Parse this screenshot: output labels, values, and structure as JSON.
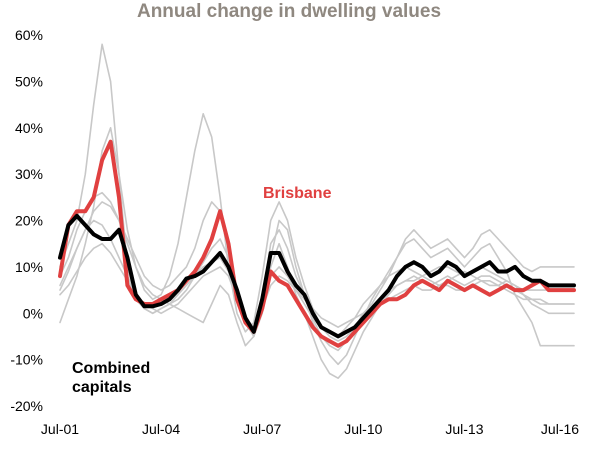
{
  "chart_data": {
    "type": "line",
    "title": "Annual change in dwelling values",
    "xlabel": "",
    "ylabel": "",
    "x": [
      2001.5,
      2001.75,
      2002.0,
      2002.25,
      2002.5,
      2002.75,
      2003.0,
      2003.25,
      2003.5,
      2003.75,
      2004.0,
      2004.25,
      2004.5,
      2004.75,
      2005.0,
      2005.25,
      2005.5,
      2005.75,
      2006.0,
      2006.25,
      2006.5,
      2006.75,
      2007.0,
      2007.25,
      2007.5,
      2007.75,
      2008.0,
      2008.25,
      2008.5,
      2008.75,
      2009.0,
      2009.25,
      2009.5,
      2009.75,
      2010.0,
      2010.25,
      2010.5,
      2010.75,
      2011.0,
      2011.25,
      2011.5,
      2011.75,
      2012.0,
      2012.25,
      2012.5,
      2012.75,
      2013.0,
      2013.25,
      2013.5,
      2013.75,
      2014.0,
      2014.25,
      2014.5,
      2014.75,
      2015.0,
      2015.25,
      2015.5,
      2015.75,
      2016.0,
      2016.25,
      2016.5,
      2016.75
    ],
    "x_ticks": [
      {
        "value": 2001.5,
        "label": "Jul-01"
      },
      {
        "value": 2004.5,
        "label": "Jul-04"
      },
      {
        "value": 2007.5,
        "label": "Jul-07"
      },
      {
        "value": 2010.5,
        "label": "Jul-10"
      },
      {
        "value": 2013.5,
        "label": "Jul-13"
      },
      {
        "value": 2016.5,
        "label": "Jul-16"
      }
    ],
    "xlim": [
      2001.5,
      2016.75
    ],
    "y_ticks": [
      -20,
      -10,
      0,
      10,
      20,
      30,
      40,
      50,
      60
    ],
    "y_tick_labels": [
      "-20%",
      "-10%",
      "0%",
      "10%",
      "20%",
      "30%",
      "40%",
      "50%",
      "60%"
    ],
    "ylim": [
      -20,
      60
    ],
    "grid": false,
    "legend": "none",
    "series": [
      {
        "name": "Combined capitals",
        "color": "#000000",
        "emphasis": true,
        "values": [
          12,
          19,
          21,
          19,
          17,
          16,
          16,
          18,
          12,
          4,
          1.5,
          1.5,
          2,
          3,
          5,
          7.5,
          8,
          9,
          11,
          13,
          10,
          5,
          -1,
          -4,
          3,
          13,
          13,
          9,
          6,
          4,
          0,
          -3,
          -4,
          -5,
          -4,
          -3,
          -1,
          1,
          3,
          5,
          8,
          10,
          11,
          10,
          8,
          9,
          11,
          10,
          8,
          9,
          10,
          11,
          9,
          9,
          10,
          8,
          7,
          7,
          6,
          6,
          6,
          6
        ]
      },
      {
        "name": "Brisbane",
        "color": "#e04040",
        "emphasis": true,
        "values": [
          8,
          19,
          22,
          22,
          25,
          33,
          37,
          25,
          6,
          3,
          2,
          2,
          3,
          4,
          5,
          7,
          9,
          12,
          16,
          22,
          15,
          3,
          -2,
          -4,
          1,
          9,
          7,
          6,
          3,
          0,
          -3,
          -5,
          -6,
          -7,
          -6,
          -4,
          -2,
          0,
          2,
          3,
          3,
          4,
          6,
          7,
          6,
          5,
          7,
          6,
          5,
          6,
          5,
          4,
          5,
          6,
          5,
          5,
          6,
          7,
          5,
          5,
          5,
          5
        ]
      },
      {
        "name": "",
        "color": "#c8c8c8",
        "emphasis": false,
        "values": [
          10,
          15,
          20,
          30,
          45,
          58,
          50,
          30,
          10,
          3,
          1,
          0,
          1,
          2,
          3,
          5,
          8,
          11,
          14,
          16,
          12,
          5,
          -1,
          -5,
          3,
          15,
          18,
          14,
          8,
          4,
          -2,
          -6,
          -9,
          -11,
          -9,
          -5,
          -1,
          3,
          6,
          9,
          12,
          15,
          16,
          14,
          12,
          13,
          14,
          12,
          10,
          12,
          14,
          15,
          12,
          9,
          4,
          1,
          -2,
          -7,
          -7,
          -7,
          -7,
          -7
        ]
      },
      {
        "name": "",
        "color": "#c8c8c8",
        "emphasis": false,
        "values": [
          5,
          9,
          14,
          18,
          22,
          24,
          23,
          20,
          15,
          10,
          5,
          3,
          4,
          8,
          15,
          25,
          35,
          43,
          38,
          25,
          10,
          0,
          -4,
          -2,
          8,
          20,
          24,
          20,
          12,
          6,
          1,
          -3,
          -4,
          -5,
          -3,
          -1,
          2,
          4,
          6,
          8,
          9,
          10,
          9,
          8,
          7,
          6,
          7,
          8,
          9,
          8,
          7,
          6,
          6,
          7,
          6,
          5,
          5,
          5,
          5,
          5,
          5,
          5
        ]
      },
      {
        "name": "",
        "color": "#c8c8c8",
        "emphasis": false,
        "values": [
          -2,
          3,
          8,
          15,
          23,
          35,
          40,
          30,
          18,
          10,
          6,
          4,
          3,
          2,
          1,
          0,
          -1,
          -2,
          2,
          6,
          4,
          -2,
          -7,
          -5,
          2,
          10,
          15,
          10,
          4,
          0,
          -5,
          -10,
          -13,
          -14,
          -12,
          -8,
          -4,
          -1,
          2,
          4,
          6,
          7,
          7,
          8,
          9,
          10,
          10,
          9,
          8,
          9,
          10,
          9,
          8,
          7,
          6,
          4,
          2,
          1,
          0,
          0,
          0,
          0
        ]
      },
      {
        "name": "",
        "color": "#c8c8c8",
        "emphasis": false,
        "values": [
          8,
          12,
          18,
          22,
          25,
          26,
          24,
          20,
          16,
          12,
          8,
          6,
          5,
          6,
          8,
          10,
          14,
          20,
          24,
          22,
          14,
          4,
          -2,
          -4,
          2,
          12,
          20,
          18,
          10,
          4,
          -1,
          -5,
          -7,
          -8,
          -6,
          -3,
          0,
          2,
          5,
          8,
          12,
          16,
          18,
          16,
          14,
          15,
          16,
          14,
          12,
          14,
          17,
          18,
          16,
          14,
          12,
          10,
          9,
          10,
          10,
          10,
          10,
          10
        ]
      },
      {
        "name": "",
        "color": "#c8c8c8",
        "emphasis": false,
        "values": [
          6,
          10,
          14,
          18,
          20,
          19,
          16,
          12,
          8,
          4,
          1,
          0,
          1,
          2,
          4,
          6,
          8,
          10,
          11,
          12,
          9,
          3,
          -2,
          -5,
          0,
          8,
          10,
          8,
          5,
          2,
          -1,
          -3,
          -5,
          -6,
          -5,
          -3,
          -1,
          1,
          3,
          5,
          6,
          7,
          8,
          7,
          6,
          7,
          8,
          7,
          6,
          7,
          8,
          8,
          7,
          6,
          5,
          4,
          3,
          3,
          2,
          2,
          2,
          2
        ]
      },
      {
        "name": "",
        "color": "#c8c8c8",
        "emphasis": false,
        "values": [
          4,
          6,
          9,
          12,
          14,
          15,
          13,
          10,
          7,
          4,
          2,
          1,
          0,
          1,
          2,
          4,
          6,
          8,
          9,
          10,
          8,
          3,
          -1,
          -3,
          1,
          6,
          8,
          7,
          5,
          3,
          1,
          -1,
          -2,
          -3,
          -2,
          -1,
          0,
          1,
          2,
          3,
          4,
          5,
          6,
          5,
          5,
          6,
          6,
          5,
          5,
          6,
          7,
          7,
          6,
          5,
          4,
          3,
          3,
          2,
          2,
          2,
          2,
          2
        ]
      }
    ],
    "annotations": [
      {
        "text": "Brisbane",
        "color": "#e04040"
      },
      {
        "text_lines": [
          "Combined",
          "capitals"
        ],
        "color": "#000000"
      }
    ]
  }
}
